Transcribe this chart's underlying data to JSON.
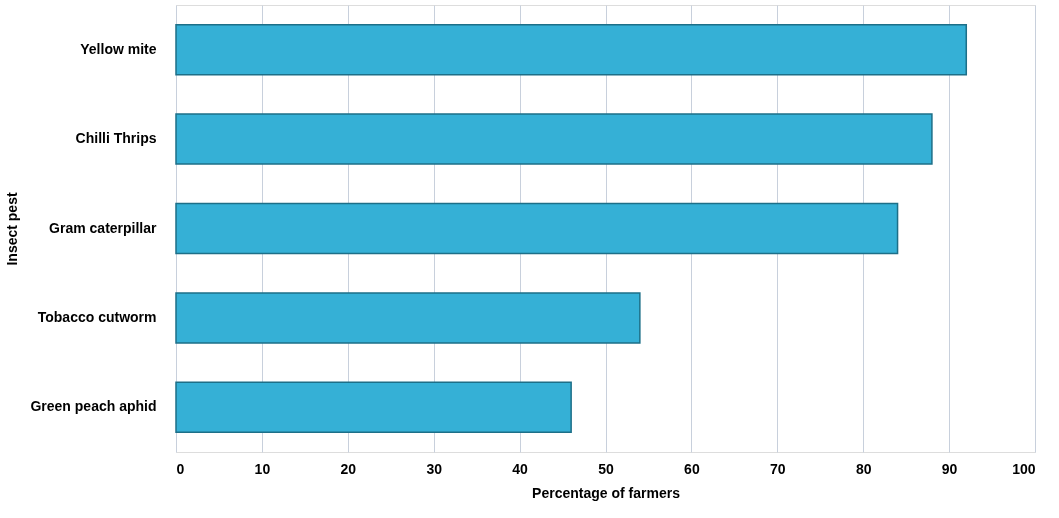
{
  "chart_data": {
    "type": "bar",
    "orientation": "horizontal",
    "xlabel": "Percentage of farmers",
    "ylabel": "Insect pest",
    "categories": [
      "Yellow mite",
      "Chilli Thrips",
      "Gram caterpillar",
      "Tobacco cutworm",
      "Green peach aphid"
    ],
    "values": [
      92,
      88,
      84,
      54,
      46
    ],
    "color": "#35b0d6",
    "xlim": [
      0,
      100
    ],
    "xticks": [
      0,
      10,
      20,
      30,
      40,
      50,
      60,
      70,
      80,
      90,
      100
    ],
    "grid": "x"
  }
}
